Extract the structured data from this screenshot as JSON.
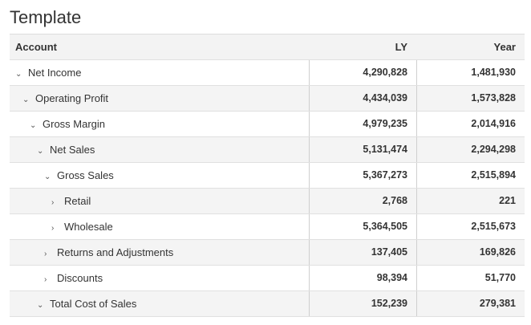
{
  "title": "Template",
  "columns": {
    "account": "Account",
    "ly": "LY",
    "year": "Year"
  },
  "rows": [
    {
      "label": "Net Income",
      "expanded": true,
      "ly": "4,290,828",
      "year": "1,481,930"
    },
    {
      "label": "Operating Profit",
      "expanded": true,
      "ly": "4,434,039",
      "year": "1,573,828"
    },
    {
      "label": "Gross Margin",
      "expanded": true,
      "ly": "4,979,235",
      "year": "2,014,916"
    },
    {
      "label": "Net Sales",
      "expanded": true,
      "ly": "5,131,474",
      "year": "2,294,298"
    },
    {
      "label": "Gross Sales",
      "expanded": true,
      "ly": "5,367,273",
      "year": "2,515,894"
    },
    {
      "label": "Retail",
      "expanded": false,
      "ly": "2,768",
      "year": "221"
    },
    {
      "label": "Wholesale",
      "expanded": false,
      "ly": "5,364,505",
      "year": "2,515,673"
    },
    {
      "label": "Returns and Adjustments",
      "expanded": false,
      "ly": "137,405",
      "year": "169,826"
    },
    {
      "label": "Discounts",
      "expanded": false,
      "ly": "98,394",
      "year": "51,770"
    },
    {
      "label": "Total Cost of Sales",
      "expanded": true,
      "ly": "152,239",
      "year": "279,381"
    }
  ]
}
